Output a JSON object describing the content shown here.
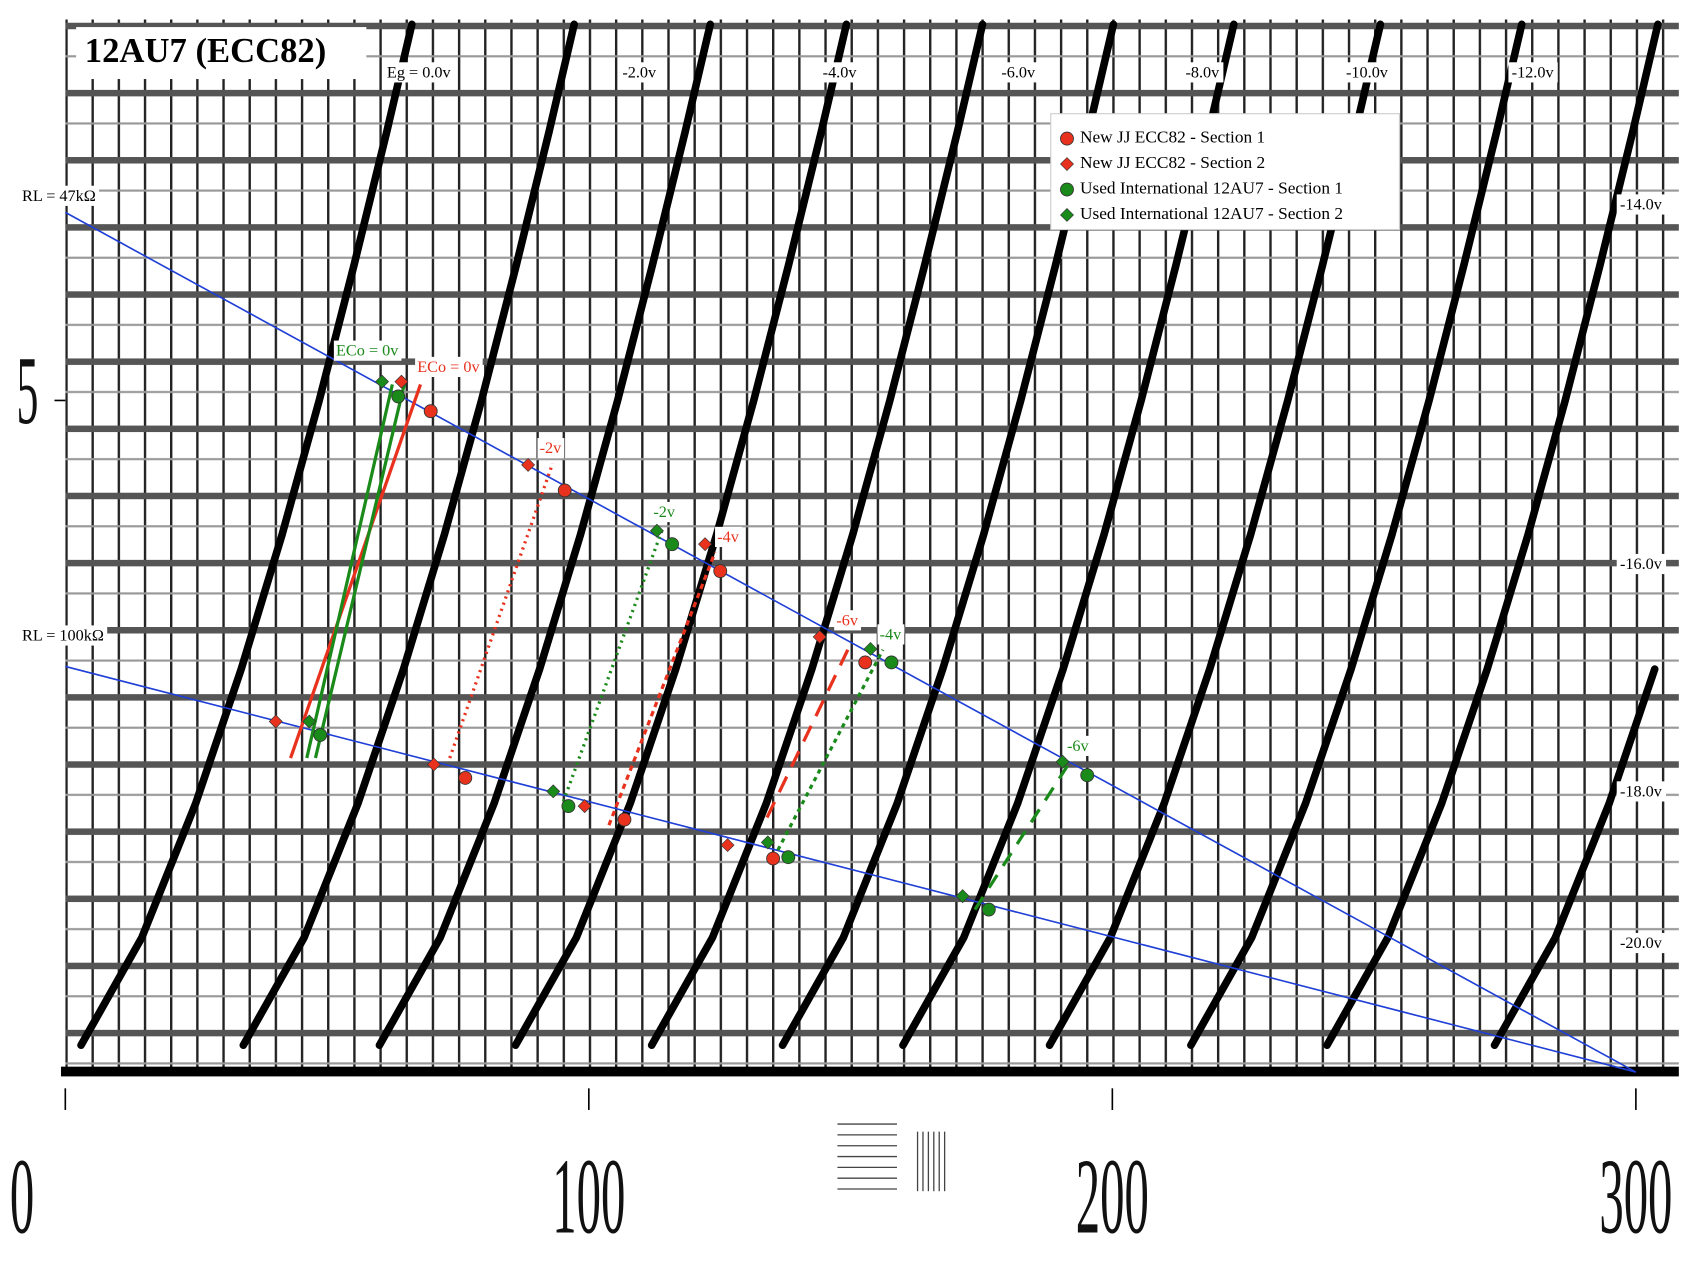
{
  "chart_data": {
    "type": "scatter",
    "title": "12AU7 (ECC82)",
    "xlim": [
      0,
      308
    ],
    "ylim": [
      0,
      7.82
    ],
    "xticks": [
      0,
      100,
      200,
      300
    ],
    "yticks": [
      5
    ],
    "grid": true,
    "legend": "upper right",
    "grid_curves": {
      "color": "#000000",
      "labels": [
        "Eg = 0.0v",
        "-2.0v",
        "-4.0v",
        "-6.0v",
        "-8.0v",
        "-10.0v",
        "-12.0v",
        "-14.0v",
        "-16.0v",
        "-18.0v",
        "-20.0v"
      ],
      "curves": [
        {
          "x": [
            3,
            14.6,
            24.9,
            33.6,
            41.4,
            48.5,
            55.1,
            61.4,
            66.2
          ],
          "y": [
            0.2,
            1,
            2,
            3,
            4,
            5,
            6,
            7,
            7.8
          ]
        },
        {
          "x": [
            34,
            45.6,
            55.9,
            64.6,
            72.4,
            79.5,
            86.1,
            92.4,
            97.2
          ],
          "y": [
            0.2,
            1,
            2,
            3,
            4,
            5,
            6,
            7,
            7.8
          ]
        },
        {
          "x": [
            60,
            71.6,
            81.9,
            90.6,
            98.4,
            105.5,
            112.1,
            118.4,
            123.2
          ],
          "y": [
            0.2,
            1,
            2,
            3,
            4,
            5,
            6,
            7,
            7.8
          ]
        },
        {
          "x": [
            86,
            97.6,
            107.9,
            116.6,
            124.4,
            131.5,
            138.1,
            144.4,
            149.2
          ],
          "y": [
            0.2,
            1,
            2,
            3,
            4,
            5,
            6,
            7,
            7.8
          ]
        },
        {
          "x": [
            112,
            123.6,
            133.9,
            142.6,
            150.4,
            157.5,
            164.1,
            170.4,
            175.2
          ],
          "y": [
            0.2,
            1,
            2,
            3,
            4,
            5,
            6,
            7,
            7.8
          ]
        },
        {
          "x": [
            137,
            148.6,
            158.9,
            167.6,
            175.4,
            182.5,
            189.1,
            195.4,
            200.2
          ],
          "y": [
            0.2,
            1,
            2,
            3,
            4,
            5,
            6,
            7,
            7.8
          ]
        },
        {
          "x": [
            160,
            171.6,
            181.9,
            190.6,
            198.4,
            205.5,
            212.1,
            218.4,
            223.2
          ],
          "y": [
            0.2,
            1,
            2,
            3,
            4,
            5,
            6,
            7,
            7.8
          ]
        },
        {
          "x": [
            188,
            199.6,
            209.9,
            218.6,
            226.4,
            233.5,
            240.1,
            246.4,
            251.2
          ],
          "y": [
            0.2,
            1,
            2,
            3,
            4,
            5,
            6,
            7,
            7.8
          ]
        },
        {
          "x": [
            215,
            226.6,
            236.9,
            245.6,
            253.4,
            260.5,
            267.1,
            273.4,
            278.2
          ],
          "y": [
            0.2,
            1,
            2,
            3,
            4,
            5,
            6,
            7,
            7.8
          ]
        },
        {
          "x": [
            241,
            252.6,
            262.9,
            271.6,
            279.4,
            286.5,
            293.1,
            299.4,
            304.2
          ],
          "y": [
            0.2,
            1,
            2,
            3,
            4,
            5,
            6,
            7,
            7.8
          ]
        },
        {
          "x": [
            273,
            284.6,
            294.9,
            303.6
          ],
          "y": [
            0.2,
            1,
            2,
            3
          ]
        }
      ]
    },
    "load_lines": [
      {
        "label": "RL = 47kΩ",
        "color": "#1f3fd6",
        "x": [
          0,
          300
        ],
        "y": [
          6.4,
          0
        ]
      },
      {
        "label": "RL = 100kΩ",
        "color": "#1f3fd6",
        "x": [
          0,
          300
        ],
        "y": [
          3.02,
          0
        ]
      }
    ],
    "series": [
      {
        "name": "New JJ ECC82 - Section 1",
        "color": "#e8321e",
        "marker": "circle",
        "x": [
          69.8,
          95.4,
          125.1,
          152.8,
          76.4,
          106.8,
          135.2
        ],
        "values": [
          4.92,
          4.33,
          3.73,
          3.05,
          2.19,
          1.88,
          1.59
        ]
      },
      {
        "name": "New JJ ECC82 - Section 2",
        "color": "#e8321e",
        "marker": "diamond",
        "x": [
          64.2,
          88.4,
          122.2,
          144.1,
          40.2,
          70.4,
          99.2,
          126.5
        ],
        "values": [
          5.14,
          4.52,
          3.93,
          3.24,
          2.61,
          2.29,
          1.98,
          1.69
        ]
      },
      {
        "name": "Used International 12AU7 - Section 1",
        "color": "#1a8a1a",
        "marker": "circle",
        "x": [
          63.6,
          115.9,
          157.8,
          195.2,
          48.7,
          96.1,
          138.1,
          176.4
        ],
        "values": [
          5.03,
          3.93,
          3.05,
          2.21,
          2.51,
          1.98,
          1.6,
          1.21
        ]
      },
      {
        "name": "Used International 12AU7 - Section 2",
        "color": "#1a8a1a",
        "marker": "diamond",
        "x": [
          60.5,
          113.0,
          153.8,
          190.5,
          46.6,
          93.2,
          134.2,
          171.4
        ],
        "values": [
          5.14,
          4.03,
          3.15,
          2.31,
          2.61,
          2.09,
          1.71,
          1.31
        ]
      }
    ],
    "annotations": [
      {
        "text": "ECo = 0v",
        "color": "#1a8a1a"
      },
      {
        "text": "ECo = 0v",
        "color": "#e8321e"
      },
      {
        "text": "-2v",
        "color": "#e8321e"
      },
      {
        "text": "-2v",
        "color": "#1a8a1a"
      },
      {
        "text": "-4v",
        "color": "#e8321e"
      },
      {
        "text": "-6v",
        "color": "#e8321e"
      },
      {
        "text": "-4v",
        "color": "#1a8a1a"
      },
      {
        "text": "-6v",
        "color": "#1a8a1a"
      }
    ]
  }
}
